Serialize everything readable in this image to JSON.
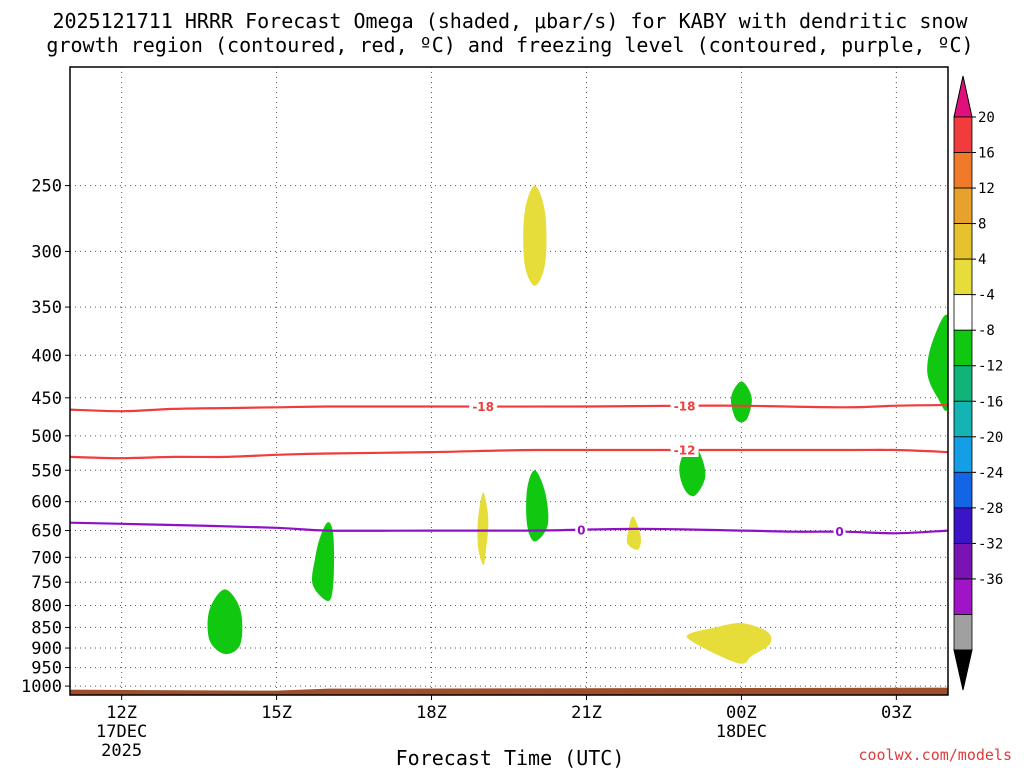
{
  "chart_data": {
    "type": "area",
    "title": "2025121711 HRRR Forecast Omega (shaded, μbar/s) for KABY with dendritic snow growth region (contoured, red, ºC) and freezing level (contoured, purple, ºC)",
    "title_lines": [
      "2025121711 HRRR Forecast Omega (shaded, μbar/s) for KABY with dendritic snow",
      "growth region (contoured, red, ºC) and freezing level (contoured, purple, ºC)"
    ],
    "xlabel": "Forecast Time (UTC)",
    "ylabel": "",
    "credit": "coolwx.com/models",
    "x_range_hours": [
      11,
      28
    ],
    "y_range_hpa": [
      180,
      1025
    ],
    "y_scale": "log",
    "x_ticks": [
      {
        "hour": 12,
        "label": "12Z",
        "sub1": "17DEC",
        "sub2": "2025"
      },
      {
        "hour": 15,
        "label": "15Z",
        "sub1": "",
        "sub2": ""
      },
      {
        "hour": 18,
        "label": "18Z",
        "sub1": "",
        "sub2": ""
      },
      {
        "hour": 21,
        "label": "21Z",
        "sub1": "",
        "sub2": ""
      },
      {
        "hour": 24,
        "label": "00Z",
        "sub1": "18DEC",
        "sub2": ""
      },
      {
        "hour": 27,
        "label": "03Z",
        "sub1": "",
        "sub2": ""
      }
    ],
    "y_ticks": [
      250,
      300,
      350,
      400,
      450,
      500,
      550,
      600,
      650,
      700,
      750,
      800,
      850,
      900,
      950,
      1000
    ],
    "grid": true,
    "colorbar": {
      "labels": [
        "20",
        "16",
        "12",
        "8",
        "4",
        "-4",
        "-8",
        "-12",
        "-16",
        "-20",
        "-24",
        "-28",
        "-32",
        "-36"
      ],
      "top_arrow_color": "#e0107a",
      "bottom_arrow_color": "#000000",
      "bins": [
        "#f03c3c",
        "#f07a2a",
        "#e6a22c",
        "#e6c22c",
        "#e6dc3a",
        "#ffffff",
        "#10c810",
        "#10b478",
        "#14b4b4",
        "#149ee6",
        "#1464e6",
        "#3c14c8",
        "#7814b4",
        "#a014c8",
        "#a0a0a0"
      ]
    },
    "omega_regions": [
      {
        "color": "#e6dc3a",
        "points": [
          [
            20.0,
            250
          ],
          [
            20.2,
            270
          ],
          [
            20.2,
            310
          ],
          [
            20.0,
            330
          ],
          [
            19.8,
            310
          ],
          [
            19.8,
            270
          ]
        ]
      },
      {
        "color": "#10c810",
        "points": [
          [
            28.0,
            360
          ],
          [
            27.7,
            385
          ],
          [
            27.6,
            420
          ],
          [
            27.8,
            450
          ],
          [
            28.0,
            460
          ]
        ]
      },
      {
        "color": "#10c810",
        "points": [
          [
            24.0,
            430
          ],
          [
            24.2,
            450
          ],
          [
            24.1,
            478
          ],
          [
            23.9,
            478
          ],
          [
            23.8,
            450
          ]
        ]
      },
      {
        "color": "#10c810",
        "points": [
          [
            23.0,
            510
          ],
          [
            23.2,
            525
          ],
          [
            23.3,
            560
          ],
          [
            23.1,
            590
          ],
          [
            22.9,
            580
          ],
          [
            22.8,
            545
          ]
        ]
      },
      {
        "color": "#10c810",
        "points": [
          [
            20.0,
            550
          ],
          [
            20.2,
            585
          ],
          [
            20.25,
            640
          ],
          [
            20.0,
            670
          ],
          [
            19.85,
            640
          ],
          [
            19.85,
            580
          ]
        ]
      },
      {
        "color": "#e6dc3a",
        "points": [
          [
            19.0,
            585
          ],
          [
            19.1,
            630
          ],
          [
            19.05,
            690
          ],
          [
            19.0,
            715
          ],
          [
            18.9,
            680
          ],
          [
            18.9,
            630
          ]
        ]
      },
      {
        "color": "#e6dc3a",
        "points": [
          [
            21.9,
            625
          ],
          [
            22.05,
            660
          ],
          [
            22.0,
            685
          ],
          [
            21.8,
            675
          ],
          [
            21.8,
            655
          ]
        ]
      },
      {
        "color": "#10c810",
        "points": [
          [
            16.0,
            635
          ],
          [
            16.1,
            660
          ],
          [
            16.1,
            750
          ],
          [
            16.0,
            790
          ],
          [
            15.7,
            755
          ],
          [
            15.75,
            700
          ],
          [
            15.85,
            660
          ]
        ]
      },
      {
        "color": "#10c810",
        "points": [
          [
            14.0,
            765
          ],
          [
            14.3,
            810
          ],
          [
            14.3,
            890
          ],
          [
            14.0,
            915
          ],
          [
            13.7,
            880
          ],
          [
            13.7,
            810
          ]
        ]
      },
      {
        "color": "#e6dc3a",
        "points": [
          [
            24.0,
            840
          ],
          [
            24.5,
            860
          ],
          [
            24.55,
            890
          ],
          [
            24.2,
            920
          ],
          [
            24.0,
            940
          ],
          [
            23.5,
            915
          ],
          [
            23.0,
            880
          ],
          [
            23.0,
            865
          ],
          [
            23.5,
            850
          ]
        ]
      }
    ],
    "contours": [
      {
        "name": "-18",
        "color": "#f03c3c",
        "label": "-18",
        "label_hours": [
          19.0,
          22.9
        ],
        "points": [
          [
            11,
            465
          ],
          [
            12,
            467
          ],
          [
            13,
            464
          ],
          [
            14,
            463
          ],
          [
            15,
            462
          ],
          [
            16,
            461
          ],
          [
            18,
            461
          ],
          [
            21,
            461
          ],
          [
            23,
            460
          ],
          [
            24,
            460
          ],
          [
            26,
            462
          ],
          [
            27,
            460
          ],
          [
            28,
            459
          ]
        ]
      },
      {
        "name": "-12",
        "color": "#f03c3c",
        "label": "-12",
        "label_hours": [
          22.9
        ],
        "points": [
          [
            11,
            530
          ],
          [
            12,
            532
          ],
          [
            13,
            530
          ],
          [
            14,
            530
          ],
          [
            15,
            527
          ],
          [
            16,
            525
          ],
          [
            18,
            523
          ],
          [
            20,
            520
          ],
          [
            22,
            520
          ],
          [
            24,
            520
          ],
          [
            26,
            520
          ],
          [
            27,
            520
          ],
          [
            28,
            523
          ]
        ]
      },
      {
        "name": "0",
        "color": "#9010c8",
        "label": "0",
        "label_hours": [
          20.9,
          25.9
        ],
        "points": [
          [
            11,
            636
          ],
          [
            13,
            640
          ],
          [
            15,
            645
          ],
          [
            16,
            650
          ],
          [
            18,
            650
          ],
          [
            20,
            650
          ],
          [
            22,
            647
          ],
          [
            24,
            650
          ],
          [
            25,
            652
          ],
          [
            26,
            652
          ],
          [
            27,
            655
          ],
          [
            28,
            650
          ]
        ]
      }
    ],
    "ground": {
      "color": "#9e4e2a",
      "top_hpa": 1010
    }
  }
}
